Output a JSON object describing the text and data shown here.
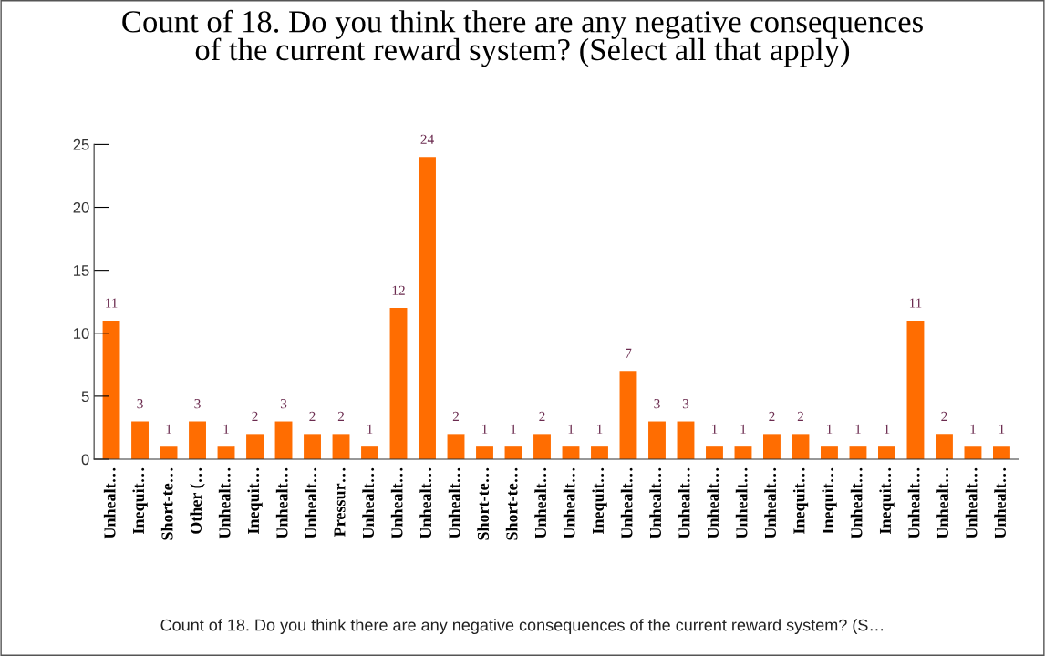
{
  "chart_data": {
    "type": "bar",
    "title": "Count of 18. Do you think there are any negative consequences\nof the current reward system? (Select all that apply)",
    "xlabel": "Count of 18. Do you think there are any negative consequences of the current reward system? (S…",
    "categories": [
      "Unhealt…",
      "Inequit…",
      "Short-te…",
      "Other (…",
      "Unhealt…",
      "Inequit…",
      "Unhealt…",
      "Unhealt…",
      "Pressur…",
      "Unhealt…",
      "Unhealt…",
      "Unhealt…",
      "Unhealt…",
      "Short-te…",
      "Short-te…",
      "Unhealt…",
      "Unhealt…",
      "Inequit…",
      "Unhealt…",
      "Unhealt…",
      "Unhealt…",
      "Unhealt…",
      "Unhealt…",
      "Unhealt…",
      "Inequit…",
      "Inequit…",
      "Unhealt…",
      "Inequit…",
      "Unhealt…",
      "Unhealt…",
      "Unhealt…",
      "Unhealt…"
    ],
    "values": [
      11,
      3,
      1,
      3,
      1,
      2,
      3,
      2,
      2,
      1,
      12,
      24,
      2,
      1,
      1,
      2,
      1,
      1,
      7,
      3,
      3,
      1,
      1,
      2,
      2,
      1,
      1,
      1,
      11,
      2,
      1,
      1
    ],
    "color": "#ff6d01",
    "ylim": [
      0,
      25
    ],
    "yticks": [
      0,
      5,
      10,
      15,
      20,
      25
    ],
    "grid": false,
    "data_labels": true
  }
}
